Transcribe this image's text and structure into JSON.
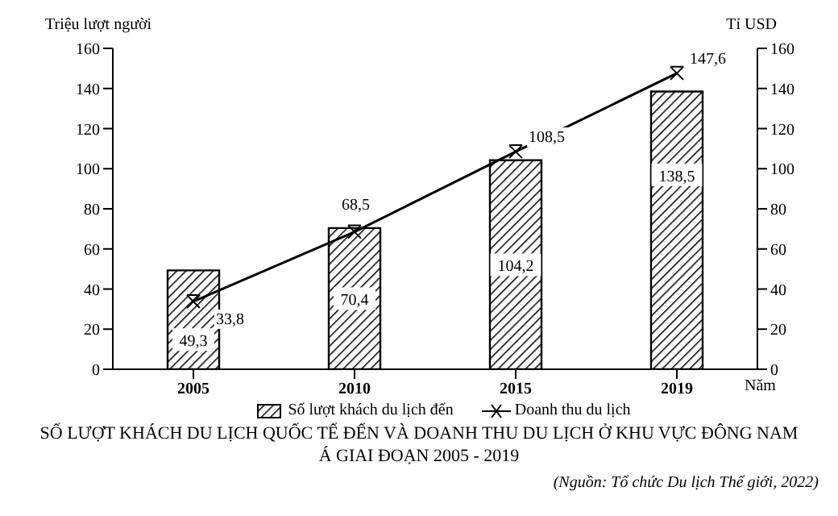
{
  "chart_data": {
    "type": "bar",
    "title": "SỐ LƯỢT KHÁCH DU LỊCH QUỐC TẾ ĐẾN VÀ DOANH THU DU LỊCH Ở KHU VỰC ĐÔNG NAM Á GIAI ĐOẠN 2005 - 2019",
    "xlabel": "Năm",
    "ylabel": "Triệu lượt người",
    "y2label": "Tỉ USD",
    "annotations": [
      "(Nguồn: Tổ chức Du lịch Thế giới, 2022)"
    ],
    "categories": [
      "2005",
      "2010",
      "2015",
      "2019"
    ],
    "series": [
      {
        "name": "Số lượt khách du lịch đến",
        "color": "#000000",
        "values": [
          49.3,
          70.4,
          104.2,
          138.5
        ],
        "value_labels": [
          "49,3",
          "70,4",
          "104,2",
          "138,5"
        ]
      },
      {
        "name": "Doanh thu du lịch",
        "type": "line",
        "axis": "y2",
        "color": "#000000",
        "marker": "cross",
        "values": [
          33.8,
          68.5,
          108.5,
          147.6
        ],
        "value_labels": [
          "33,8",
          "68,5",
          "108,5",
          "147,6"
        ]
      }
    ],
    "ylim": [
      0,
      160
    ],
    "yticks": [
      0,
      20,
      40,
      60,
      80,
      100,
      120,
      140,
      160
    ],
    "y2lim": [
      0,
      160
    ],
    "y2ticks": [
      0,
      20,
      40,
      60,
      80,
      100,
      120,
      140,
      160
    ],
    "legend": "bottom"
  }
}
